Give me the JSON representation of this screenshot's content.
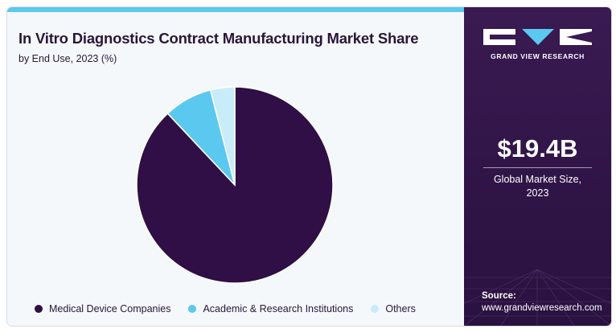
{
  "title": "In Vitro Diagnostics Contract Manufacturing Market Share",
  "subtitle": "by End Use, 2023 (%)",
  "chart_data": {
    "type": "pie",
    "title": "In Vitro Diagnostics Contract Manufacturing Market Share",
    "subtitle": "by End Use, 2023 (%)",
    "categories": [
      "Medical Device Companies",
      "Academic & Research Institutions",
      "Others"
    ],
    "values": [
      88,
      8,
      4
    ],
    "colors": [
      "#2f0f45",
      "#5bc8f0",
      "#c9ecfa"
    ],
    "legend_position": "bottom"
  },
  "sidebar": {
    "brand": "GRAND VIEW RESEARCH",
    "market_value": "$19.4B",
    "market_label_line1": "Global Market Size,",
    "market_label_line2": "2023",
    "source_title": "Source:",
    "source_url": "www.grandviewresearch.com"
  },
  "colors": {
    "accent_bar": "#5bc8f0",
    "sidebar_bg": "#3a1a52",
    "panel_bg": "#f4f8fb"
  }
}
